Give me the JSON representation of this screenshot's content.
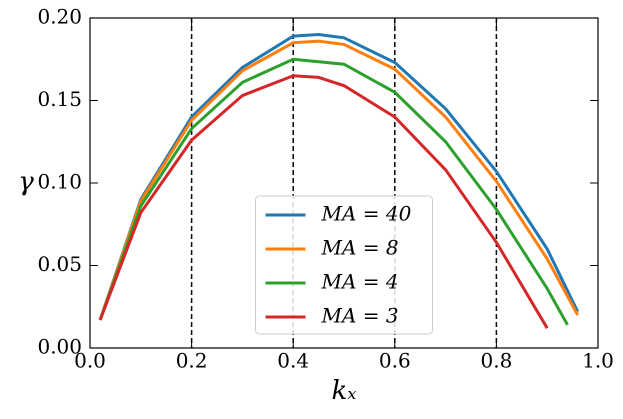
{
  "chart_data": {
    "type": "line",
    "xlabel": "kₓ",
    "ylabel": "γ",
    "xlim": [
      0,
      1
    ],
    "ylim": [
      0,
      0.2
    ],
    "xticks": [
      {
        "value": 0,
        "label": "0.0"
      },
      {
        "value": 0.2,
        "label": "0.2"
      },
      {
        "value": 0.4,
        "label": "0.4"
      },
      {
        "value": 0.6,
        "label": "0.6"
      },
      {
        "value": 0.8,
        "label": "0.8"
      },
      {
        "value": 1,
        "label": "1.0"
      }
    ],
    "yticks": [
      {
        "value": 0,
        "label": "0.00"
      },
      {
        "value": 0.05,
        "label": "0.05"
      },
      {
        "value": 0.1,
        "label": "0.10"
      },
      {
        "value": 0.15,
        "label": "0.15"
      },
      {
        "value": 0.2,
        "label": "0.20"
      }
    ],
    "xgrid": true,
    "legend": "lower center",
    "series": [
      {
        "name": "MA = 40",
        "color": "#1f77b4",
        "x": [
          0.02,
          0.1,
          0.2,
          0.3,
          0.4,
          0.45,
          0.5,
          0.6,
          0.7,
          0.8,
          0.9,
          0.96
        ],
        "values": [
          0.017,
          0.09,
          0.14,
          0.17,
          0.189,
          0.19,
          0.188,
          0.173,
          0.145,
          0.107,
          0.06,
          0.022
        ]
      },
      {
        "name": "MA = 8",
        "color": "#ff7f0e",
        "x": [
          0.02,
          0.1,
          0.2,
          0.3,
          0.4,
          0.45,
          0.5,
          0.6,
          0.7,
          0.8,
          0.9,
          0.96
        ],
        "values": [
          0.017,
          0.089,
          0.138,
          0.168,
          0.185,
          0.186,
          0.184,
          0.169,
          0.14,
          0.101,
          0.054,
          0.02
        ]
      },
      {
        "name": "MA = 4",
        "color": "#2ca02c",
        "x": [
          0.02,
          0.1,
          0.2,
          0.3,
          0.4,
          0.5,
          0.6,
          0.7,
          0.8,
          0.9,
          0.94
        ],
        "values": [
          0.017,
          0.086,
          0.133,
          0.161,
          0.175,
          0.172,
          0.155,
          0.125,
          0.084,
          0.036,
          0.014
        ]
      },
      {
        "name": "MA = 3",
        "color": "#d62728",
        "x": [
          0.02,
          0.1,
          0.2,
          0.3,
          0.4,
          0.45,
          0.5,
          0.6,
          0.7,
          0.8,
          0.9
        ],
        "values": [
          0.017,
          0.082,
          0.126,
          0.153,
          0.165,
          0.164,
          0.159,
          0.14,
          0.108,
          0.064,
          0.012
        ]
      }
    ]
  }
}
